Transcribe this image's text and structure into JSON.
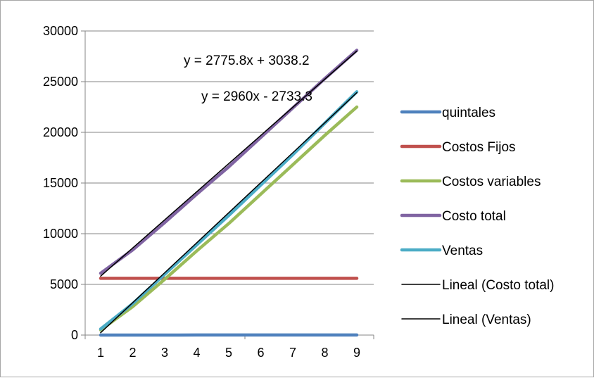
{
  "chart_data": {
    "type": "line",
    "title": "",
    "xlabel": "",
    "ylabel": "",
    "categories": [
      "1",
      "2",
      "3",
      "4",
      "5",
      "6",
      "7",
      "8",
      "9"
    ],
    "x": [
      1,
      2,
      3,
      4,
      5,
      6,
      7,
      8,
      9
    ],
    "ylim": [
      0,
      30000
    ],
    "yticks": [
      0,
      5000,
      10000,
      15000,
      20000,
      25000,
      30000
    ],
    "yticklabels": [
      "0",
      "5000",
      "10000",
      "15000",
      "20000",
      "25000",
      "30000"
    ],
    "grid": "horizontal",
    "legend_position": "right",
    "series": [
      {
        "name": "quintales",
        "color": "#4f81bd",
        "style": "thick",
        "values": [
          1,
          2,
          3,
          4,
          5,
          6,
          7,
          8,
          9
        ]
      },
      {
        "name": "Costos Fijos",
        "color": "#c0504d",
        "style": "thick",
        "values": [
          5600,
          5600,
          5600,
          5600,
          5600,
          5600,
          5600,
          5600,
          5600
        ]
      },
      {
        "name": "Costos variables",
        "color": "#9bbb59",
        "style": "thick",
        "values": [
          500,
          2800,
          5500,
          8300,
          11000,
          13900,
          16800,
          19700,
          22500
        ]
      },
      {
        "name": "Costo total",
        "color": "#8064a2",
        "style": "thick",
        "values": [
          6100,
          8400,
          11100,
          13900,
          16600,
          19500,
          22400,
          25300,
          28100
        ]
      },
      {
        "name": "Ventas",
        "color": "#4bacc6",
        "style": "thick",
        "values": [
          600,
          3100,
          6000,
          8900,
          11800,
          14800,
          17800,
          20900,
          24000
        ]
      },
      {
        "name": "Lineal (Costo total)",
        "color": "#000000",
        "style": "thin",
        "trend": {
          "slope": 2775.8,
          "intercept": 3038.2
        }
      },
      {
        "name": "Lineal (Ventas)",
        "color": "#000000",
        "style": "thin",
        "trend": {
          "slope": 2960,
          "intercept": -2733.3
        }
      }
    ],
    "annotations": [
      {
        "text": "y = 2775.8x + 3038.2",
        "target": "Lineal (Costo total)"
      },
      {
        "text": "y = 2960x - 2733.3",
        "target": "Lineal (Ventas)"
      }
    ]
  }
}
